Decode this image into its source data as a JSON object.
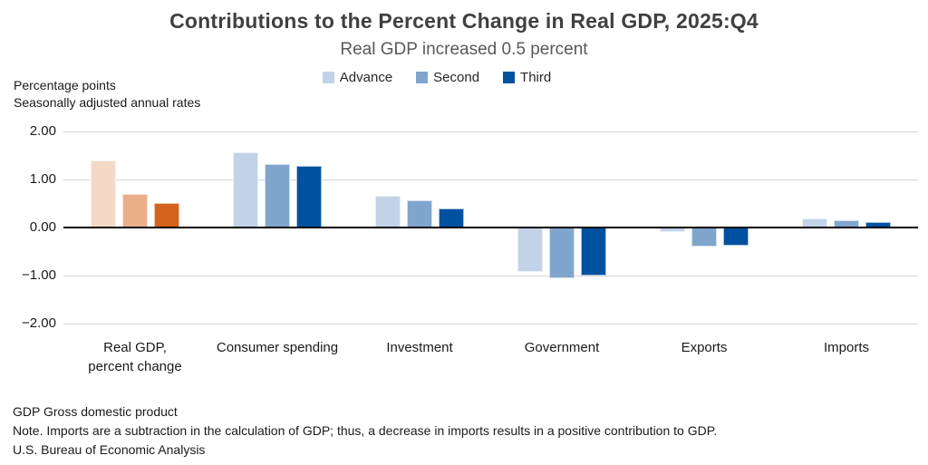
{
  "page": {
    "background": "#FFFFFF"
  },
  "chart_data": {
    "type": "bar",
    "title": "Contributions to the Percent Change in Real GDP, 2025:Q4",
    "subtitle": "Real GDP increased 0.5 percent",
    "unit_label_line1": "Percentage points",
    "unit_label_line2": "Seasonally adjusted annual rates",
    "categories": [
      "Real GDP,\npercent change",
      "Consumer spending",
      "Investment",
      "Government",
      "Exports",
      "Imports"
    ],
    "series": [
      {
        "name": "Advance",
        "values": [
          1.4,
          1.57,
          0.66,
          -0.92,
          -0.1,
          0.18
        ]
      },
      {
        "name": "Second",
        "values": [
          0.7,
          1.32,
          0.57,
          -1.05,
          -0.4,
          0.15
        ]
      },
      {
        "name": "Third",
        "values": [
          0.5,
          1.28,
          0.4,
          -1.0,
          -0.37,
          0.12
        ]
      }
    ],
    "palette": {
      "blue": [
        "#C2D3E8",
        "#7FA5CD",
        "#00519F"
      ],
      "orange": [
        "#F4DAC6",
        "#EAAE88",
        "#D2621C"
      ],
      "highlight_category_index": 0
    },
    "y_axis": {
      "min": -2,
      "max": 2,
      "tick_step": 1,
      "tick_values": [
        2,
        1,
        0,
        -1,
        -2
      ],
      "tick_labels": [
        "2.00",
        "1.00",
        "0.00",
        "−1.00",
        "−2.00"
      ],
      "grid_color": "#D9D9D9",
      "zero_line_color": "#000000"
    },
    "legend": {
      "position": "top",
      "entries": [
        "Advance",
        "Second",
        "Third"
      ]
    },
    "notes": [
      "GDP Gross domestic product",
      "Note. Imports are a subtraction in the calculation of GDP; thus, a decrease in imports results in a positive contribution to GDP.",
      "U.S. Bureau of Economic Analysis"
    ]
  }
}
